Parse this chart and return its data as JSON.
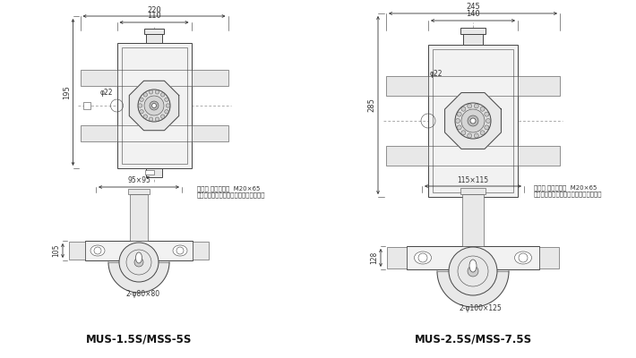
{
  "bg_color": "#ffffff",
  "lc": "#444444",
  "dc": "#333333",
  "title_left": "MUS-1.5S/MSS-5S",
  "title_right": "MUS-2.5S/MSS-7.5S",
  "note_left_1": "付属品 六角ボルト  M20×65",
  "note_left_2": "出荷時はフレームにテープで固定のこと",
  "note_right_1": "付属品 六角ボルト  M20×65",
  "note_right_2": "出荷時はフレームにテープで固定のこと",
  "d_tl_w_out": "220",
  "d_tl_w_in": "110",
  "d_tl_h": "195",
  "d_tl_shaft": "φ22",
  "d_tr_w_out": "245",
  "d_tr_w_in": "140",
  "d_tr_h": "285",
  "d_tr_shaft": "φ22",
  "d_bl_w": "95×95",
  "d_bl_h": "105",
  "d_bl_hole": "2-φ80×80",
  "d_br_w": "115×115",
  "d_br_h": "128",
  "d_br_hole": "2-φ100×125"
}
